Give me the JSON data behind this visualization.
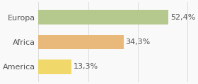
{
  "categories": [
    "America",
    "Africa",
    "Europa"
  ],
  "values": [
    13.3,
    34.3,
    52.4
  ],
  "labels": [
    "13,3%",
    "34,3%",
    "52,4%"
  ],
  "bar_colors": [
    "#f0d96a",
    "#e8b97a",
    "#b5c98e"
  ],
  "background_color": "#f9f9f9",
  "xlim": [
    0,
    62
  ],
  "bar_height": 0.58,
  "text_color": "#555555",
  "label_fontsize": 8.0,
  "tick_fontsize": 8.0,
  "grid_color": "#dddddd",
  "grid_linewidth": 0.7
}
